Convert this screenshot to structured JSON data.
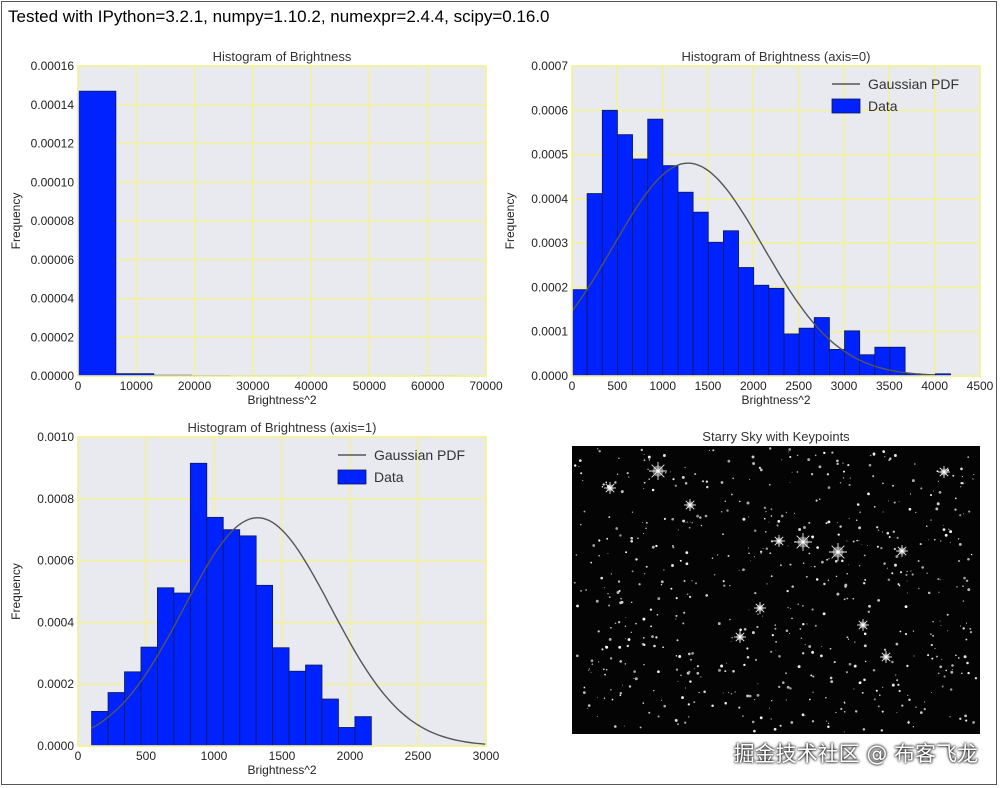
{
  "header": {
    "text": "Tested with IPython=3.2.1, numpy=1.10.2, numexpr=2.4.4, scipy=0.16.0"
  },
  "watermark": "掘金技术社区 @ 布客飞龙",
  "colors": {
    "bar_fill": "#0022ff",
    "bar_edge": "#0b1a55",
    "plot_bg": "#e9e9f0",
    "grid": "#f5f19a",
    "pdf_line": "#555555",
    "sky_bg": "#040404"
  },
  "chart_data": [
    {
      "type": "bar",
      "title": "Histogram of Brightness",
      "xlabel": "Brightness^2",
      "ylabel": "Frequency",
      "xlim": [
        0,
        70000
      ],
      "ylim": [
        0,
        0.00016
      ],
      "xticks": [
        "0",
        "10000",
        "20000",
        "30000",
        "40000",
        "50000",
        "60000",
        "70000"
      ],
      "yticks": [
        "0.00000",
        "0.00002",
        "0.00004",
        "0.00006",
        "0.00008",
        "0.00010",
        "0.00012",
        "0.00014",
        "0.00016"
      ],
      "bin_edges": [
        0,
        6500,
        13000,
        19500,
        26000,
        32500,
        39000,
        45500,
        52000,
        58500,
        65000
      ],
      "values": [
        0.000147,
        1.2e-06,
        4e-07,
        2e-07,
        1e-07,
        1e-07,
        0,
        0,
        0,
        1e-07
      ],
      "grid": true,
      "legend": null
    },
    {
      "type": "bar",
      "title": "Histogram of Brightness (axis=0)",
      "xlabel": "Brightness^2",
      "ylabel": "Frequency",
      "xlim": [
        0,
        4500
      ],
      "ylim": [
        0,
        0.0007
      ],
      "xticks": [
        "0",
        "500",
        "1000",
        "1500",
        "2000",
        "2500",
        "3000",
        "3500",
        "4000",
        "4500"
      ],
      "yticks": [
        "0.0000",
        "0.0001",
        "0.0002",
        "0.0003",
        "0.0004",
        "0.0005",
        "0.0006",
        "0.0007"
      ],
      "bin_start": 0,
      "bin_width": 167,
      "values": [
        0.000195,
        0.000412,
        0.0006,
        0.000545,
        0.00049,
        0.00058,
        0.000475,
        0.000415,
        0.00037,
        0.000302,
        0.000328,
        0.000245,
        0.000205,
        0.000198,
        9.5e-05,
        0.000108,
        0.000132,
        6e-05,
        0.000102,
        4.8e-05,
        6.5e-05,
        6.5e-05,
        5e-06,
        3e-06,
        5e-06
      ],
      "series": [
        {
          "name": "Gaussian PDF",
          "kind": "line",
          "mean": 1280,
          "std": 830,
          "x_from": 0,
          "x_to": 4000
        },
        {
          "name": "Data",
          "kind": "bar"
        }
      ],
      "grid": true,
      "legend": "top-right"
    },
    {
      "type": "bar",
      "title": "Histogram of Brightness (axis=1)",
      "xlabel": "Brightness^2",
      "ylabel": "Frequency",
      "xlim": [
        0,
        3000
      ],
      "ylim": [
        0,
        0.001
      ],
      "xticks": [
        "0",
        "500",
        "1000",
        "1500",
        "2000",
        "2500",
        "3000"
      ],
      "yticks": [
        "0.0000",
        "0.0002",
        "0.0004",
        "0.0006",
        "0.0008",
        "0.0010"
      ],
      "bin_start": 100,
      "bin_width": 121,
      "values": [
        0.000112,
        0.000173,
        0.00024,
        0.00032,
        0.000512,
        0.000495,
        0.000915,
        0.00074,
        0.0007,
        0.00068,
        0.00052,
        0.000318,
        0.000242,
        0.000262,
        0.000152,
        6e-05,
        9.5e-05
      ],
      "series": [
        {
          "name": "Gaussian PDF",
          "kind": "line",
          "mean": 1320,
          "std": 540,
          "x_from": 100,
          "x_to": 3000
        },
        {
          "name": "Data",
          "kind": "bar"
        }
      ],
      "grid": true,
      "legend": "top-right"
    },
    {
      "type": "image",
      "title": "Starry Sky with Keypoints"
    }
  ]
}
